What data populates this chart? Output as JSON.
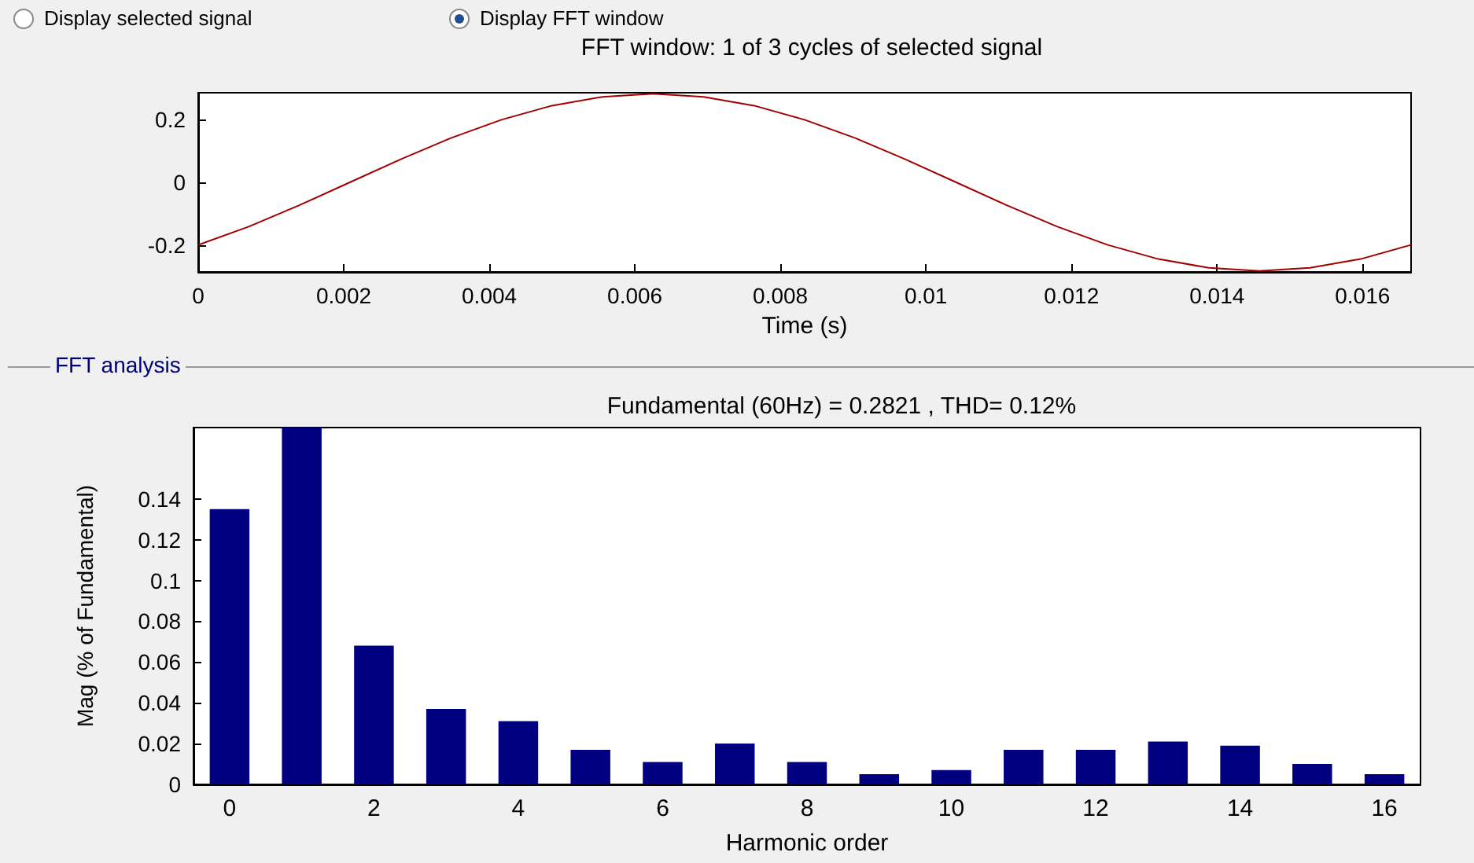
{
  "chart_data": [
    {
      "type": "line",
      "title": "FFT window: 1 of 3 cycles of selected signal",
      "xlabel": "Time (s)",
      "annotations": [
        "Display selected signal",
        "Display FFT window"
      ],
      "x": [
        0,
        0.000694,
        0.001389,
        0.002083,
        0.002778,
        0.003472,
        0.004167,
        0.004861,
        0.005556,
        0.00625,
        0.006944,
        0.007639,
        0.008333,
        0.009028,
        0.009722,
        0.010417,
        0.011111,
        0.011806,
        0.0125,
        0.013194,
        0.013889,
        0.014583,
        0.015278,
        0.015972,
        0.016667
      ],
      "series": [
        {
          "color": "#a00000",
          "values": [
            -0.199,
            -0.141,
            -0.073,
            0,
            0.073,
            0.141,
            0.199,
            0.244,
            0.272,
            0.282,
            0.272,
            0.244,
            0.199,
            0.141,
            0.073,
            0,
            -0.073,
            -0.141,
            -0.199,
            -0.244,
            -0.272,
            -0.282,
            -0.272,
            -0.244,
            -0.199
          ]
        }
      ],
      "xlim": [
        0,
        0.016667
      ],
      "xticks": [
        0,
        0.002,
        0.004,
        0.006,
        0.008,
        0.01,
        0.012,
        0.014,
        0.016
      ],
      "ylim": [
        -0.285,
        0.285
      ],
      "yticks": [
        -0.2,
        0,
        0.2
      ],
      "grid": false
    },
    {
      "type": "bar",
      "title": "Fundamental (60Hz) = 0.2821 , THD= 0.12%",
      "xlabel": "Harmonic order",
      "ylabel": "Mag (% of Fundamental)",
      "annotations": [
        "FFT analysis"
      ],
      "categories": [
        "0",
        null,
        "2",
        null,
        "4",
        null,
        "6",
        null,
        "8",
        null,
        "10",
        null,
        "12",
        null,
        "14",
        null,
        "16"
      ],
      "series": [
        {
          "color": "#000080",
          "values": [
            0.135,
            0.175,
            0.068,
            0.037,
            0.031,
            0.017,
            0.011,
            0.02,
            0.011,
            0.005,
            0.007,
            0.017,
            0.017,
            0.021,
            0.019,
            0.01,
            0.005
          ]
        }
      ],
      "ylim": [
        0,
        0.175
      ],
      "yticks": [
        0,
        0.02,
        0.04,
        0.06,
        0.08,
        0.1,
        0.12,
        0.14
      ],
      "grid": false
    }
  ]
}
